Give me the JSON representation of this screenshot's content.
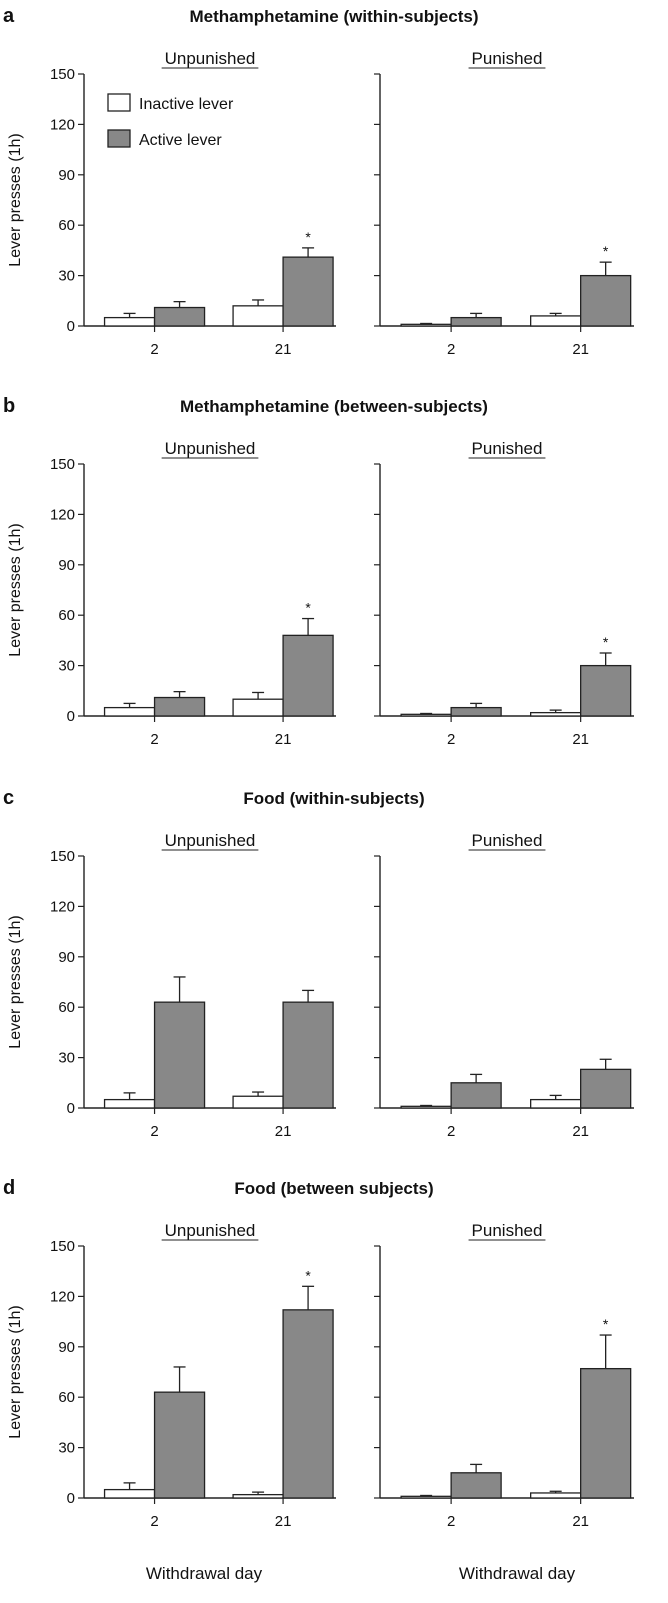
{
  "chart_data": {
    "type": "bar",
    "categories": [
      "2",
      "21"
    ],
    "legend": {
      "inactive": "Inactive lever",
      "active": "Active lever"
    },
    "colors": {
      "inactive": "#ffffff",
      "active": "#888888",
      "stroke": "#222222"
    },
    "ylabel": "Lever presses (1h)",
    "xlabel": "Withdrawal day",
    "ylim": [
      0,
      150
    ],
    "yticks": [
      "0",
      "30",
      "60",
      "90",
      "120",
      "150"
    ],
    "significance_marker": "*",
    "panels": [
      {
        "label": "a",
        "title": "Methamphetamine (within-subjects)",
        "conditions": [
          {
            "name": "Unpunished",
            "series": [
              {
                "name": "Inactive lever",
                "values": [
                  5,
                  12
                ],
                "errors": [
                  2.5,
                  3.5
                ]
              },
              {
                "name": "Active lever",
                "values": [
                  11,
                  41
                ],
                "errors": [
                  3.5,
                  5.5
                ],
                "sig": [
                  false,
                  true
                ]
              }
            ]
          },
          {
            "name": "Punished",
            "series": [
              {
                "name": "Inactive lever",
                "values": [
                  1,
                  6
                ],
                "errors": [
                  0.5,
                  1.5
                ]
              },
              {
                "name": "Active lever",
                "values": [
                  5,
                  30
                ],
                "errors": [
                  2.5,
                  8
                ],
                "sig": [
                  false,
                  true
                ]
              }
            ]
          }
        ]
      },
      {
        "label": "b",
        "title": "Methamphetamine (between-subjects)",
        "conditions": [
          {
            "name": "Unpunished",
            "series": [
              {
                "name": "Inactive lever",
                "values": [
                  5,
                  10
                ],
                "errors": [
                  2.5,
                  4
                ]
              },
              {
                "name": "Active lever",
                "values": [
                  11,
                  48
                ],
                "errors": [
                  3.5,
                  10
                ],
                "sig": [
                  false,
                  true
                ]
              }
            ]
          },
          {
            "name": "Punished",
            "series": [
              {
                "name": "Inactive lever",
                "values": [
                  1,
                  2
                ],
                "errors": [
                  0.5,
                  1.5
                ]
              },
              {
                "name": "Active lever",
                "values": [
                  5,
                  30
                ],
                "errors": [
                  2.5,
                  7.5
                ],
                "sig": [
                  false,
                  true
                ]
              }
            ]
          }
        ]
      },
      {
        "label": "c",
        "title": "Food (within-subjects)",
        "conditions": [
          {
            "name": "Unpunished",
            "series": [
              {
                "name": "Inactive lever",
                "values": [
                  5,
                  7
                ],
                "errors": [
                  4,
                  2.5
                ]
              },
              {
                "name": "Active lever",
                "values": [
                  63,
                  63
                ],
                "errors": [
                  15,
                  7
                ],
                "sig": [
                  false,
                  false
                ]
              }
            ]
          },
          {
            "name": "Punished",
            "series": [
              {
                "name": "Inactive lever",
                "values": [
                  1,
                  5
                ],
                "errors": [
                  0.5,
                  2.5
                ]
              },
              {
                "name": "Active lever",
                "values": [
                  15,
                  23
                ],
                "errors": [
                  5,
                  6
                ],
                "sig": [
                  false,
                  false
                ]
              }
            ]
          }
        ]
      },
      {
        "label": "d",
        "title": "Food (between subjects)",
        "conditions": [
          {
            "name": "Unpunished",
            "series": [
              {
                "name": "Inactive lever",
                "values": [
                  5,
                  2
                ],
                "errors": [
                  4,
                  1.5
                ]
              },
              {
                "name": "Active lever",
                "values": [
                  63,
                  112
                ],
                "errors": [
                  15,
                  14
                ],
                "sig": [
                  false,
                  true
                ]
              }
            ]
          },
          {
            "name": "Punished",
            "series": [
              {
                "name": "Inactive lever",
                "values": [
                  1,
                  3
                ],
                "errors": [
                  0.5,
                  1
                ]
              },
              {
                "name": "Active lever",
                "values": [
                  15,
                  77
                ],
                "errors": [
                  5,
                  20
                ],
                "sig": [
                  false,
                  true
                ]
              }
            ]
          }
        ]
      }
    ]
  }
}
